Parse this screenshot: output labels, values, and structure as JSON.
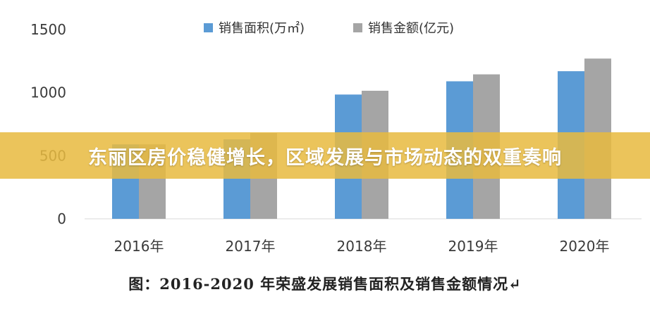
{
  "colors": {
    "series_area": "#5b9bd5",
    "series_amount": "#a5a5a5",
    "axis": "#d9d9d9",
    "banner": "#e8ba40"
  },
  "chart_data": {
    "type": "bar",
    "categories": [
      "2016年",
      "2017年",
      "2018年",
      "2019年",
      "2020年"
    ],
    "series": [
      {
        "name": "销售面积(万㎡)",
        "values": [
          590,
          630,
          985,
          1090,
          1170
        ]
      },
      {
        "name": "销售金额(亿元)",
        "values": [
          590,
          680,
          1015,
          1145,
          1270
        ]
      }
    ],
    "ylim": [
      0,
      1500
    ],
    "y_ticks": [
      "1500",
      "1000",
      "500",
      "0"
    ],
    "legend_position": "top",
    "grid": false
  },
  "banner": {
    "text": "东丽区房价稳健增长，区域发展与市场动态的双重奏响"
  },
  "caption": {
    "text": "图：2016-2020 年荣盛发展销售面积及销售金额情况↵"
  }
}
